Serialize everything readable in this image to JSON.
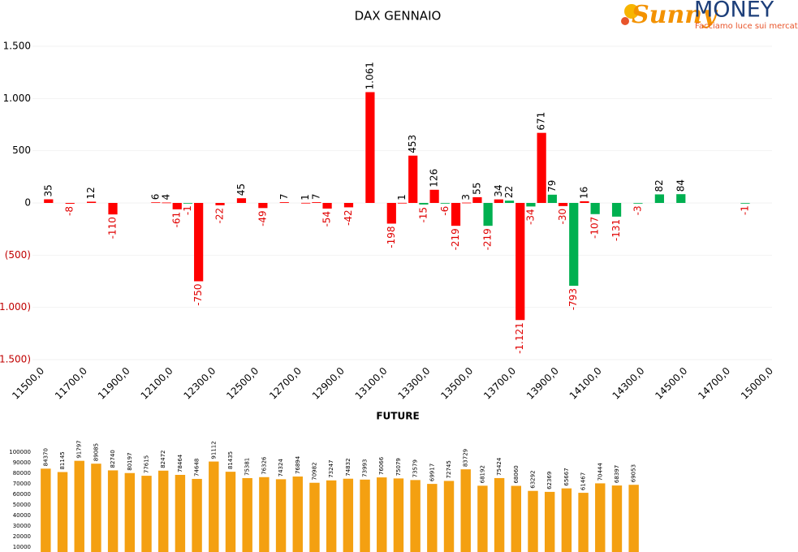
{
  "chart_data": [
    {
      "type": "bar",
      "title": "DAX GENNAIO",
      "categories": [
        "11500,0",
        null,
        null,
        null,
        "11700,0",
        null,
        null,
        null,
        "11900,0",
        null,
        null,
        null,
        "12100,0",
        null,
        null,
        null,
        "12300,0",
        null,
        null,
        null,
        "12500,0",
        null,
        null,
        null,
        "12700,0",
        null,
        null,
        null,
        "12900,0",
        null,
        null,
        null,
        "13100,0",
        null,
        null,
        null,
        "13300,0",
        null,
        null,
        null,
        "13500,0",
        null,
        null,
        null,
        "13700,0",
        null,
        null,
        null,
        "13900,0",
        null,
        null,
        null,
        "14100,0",
        null,
        null,
        null,
        "14300,0",
        null,
        null,
        null,
        "14500,0",
        null,
        null,
        null,
        "14700,0",
        null,
        null,
        null,
        "15000,0"
      ],
      "values": [
        null,
        35,
        null,
        -8,
        null,
        12,
        null,
        -110,
        null,
        null,
        null,
        6,
        4,
        -61,
        -1,
        -750,
        null,
        -22,
        null,
        45,
        null,
        -49,
        null,
        7,
        null,
        1,
        7,
        -54,
        null,
        -42,
        null,
        1061,
        null,
        -198,
        1,
        453,
        -15,
        126,
        -6,
        -219,
        3,
        55,
        -219,
        34,
        22,
        -1121,
        -34,
        671,
        79,
        -30,
        -793,
        16,
        -107,
        null,
        -131,
        null,
        -3,
        null,
        82,
        null,
        84,
        null,
        null,
        null,
        null,
        null,
        -1,
        null,
        null
      ],
      "value_labels": [
        null,
        "35",
        null,
        "-8",
        null,
        "12",
        null,
        "-110",
        null,
        null,
        null,
        "6",
        "4",
        "-61",
        "-1",
        "-750",
        null,
        "-22",
        null,
        "45",
        null,
        "-49",
        null,
        "7",
        null,
        "1",
        "7",
        "-54",
        null,
        "-42",
        null,
        "1.061",
        null,
        "-198",
        "1",
        "453",
        "-15",
        "126",
        "-6",
        "-219",
        "3",
        "55",
        "-219",
        "34",
        "22",
        "-1.121",
        "-34",
        "671",
        "79",
        "-30",
        "-793",
        "16",
        "-107",
        null,
        "-131",
        null,
        "-3",
        null,
        "82",
        null,
        "84",
        null,
        null,
        null,
        null,
        null,
        "-1",
        null,
        null
      ],
      "colors": [
        null,
        "#ff0000",
        null,
        "#ff0000",
        null,
        "#ff0000",
        null,
        "#ff0000",
        null,
        null,
        null,
        "#ff0000",
        "#ff0000",
        "#ff0000",
        "#00b050",
        "#ff0000",
        null,
        "#ff0000",
        null,
        "#ff0000",
        null,
        "#ff0000",
        null,
        "#ff0000",
        null,
        "#ff0000",
        "#ff0000",
        "#ff0000",
        null,
        "#ff0000",
        null,
        "#ff0000",
        null,
        "#ff0000",
        "#ff0000",
        "#ff0000",
        "#00b050",
        "#ff0000",
        "#00b050",
        "#ff0000",
        "#ff0000",
        "#ff0000",
        "#00b050",
        "#ff0000",
        "#00b050",
        "#ff0000",
        "#00b050",
        "#ff0000",
        "#00b050",
        "#ff0000",
        "#00b050",
        "#ff0000",
        "#00b050",
        null,
        "#00b050",
        null,
        "#00b050",
        null,
        "#00b050",
        null,
        "#00b050",
        null,
        null,
        null,
        null,
        null,
        "#00b050",
        null,
        null
      ],
      "ylim": [
        -1500,
        1500
      ],
      "yticks": [
        {
          "value": -1500,
          "label": "(1.500)"
        },
        {
          "value": -1000,
          "label": "(1.000)"
        },
        {
          "value": -500,
          "label": "(500)"
        },
        0,
        500,
        {
          "value": 1000,
          "label": "1.000"
        },
        {
          "value": 1500,
          "label": "1.500"
        }
      ],
      "grid": true
    },
    {
      "type": "bar",
      "title": "FUTURE",
      "values": [
        84370,
        81145,
        91797,
        89085,
        82740,
        80197,
        77615,
        82472,
        78464,
        74648,
        91112,
        81435,
        75381,
        76326,
        74324,
        76894,
        70982,
        73247,
        74832,
        73993,
        76066,
        75079,
        73579,
        69917,
        72745,
        83729,
        68192,
        75424,
        68060,
        63292,
        62369,
        65667,
        61467,
        70444,
        68397,
        69053
      ],
      "color": "#f4a011",
      "ylim": [
        0,
        100000
      ],
      "yticks": [
        10000,
        20000,
        30000,
        40000,
        50000,
        60000,
        70000,
        80000,
        90000,
        100000
      ],
      "grid": false
    }
  ],
  "logo": {
    "brand": "Sunny",
    "name": "MONEY",
    "tagline": "Facciamo luce sui mercati"
  }
}
